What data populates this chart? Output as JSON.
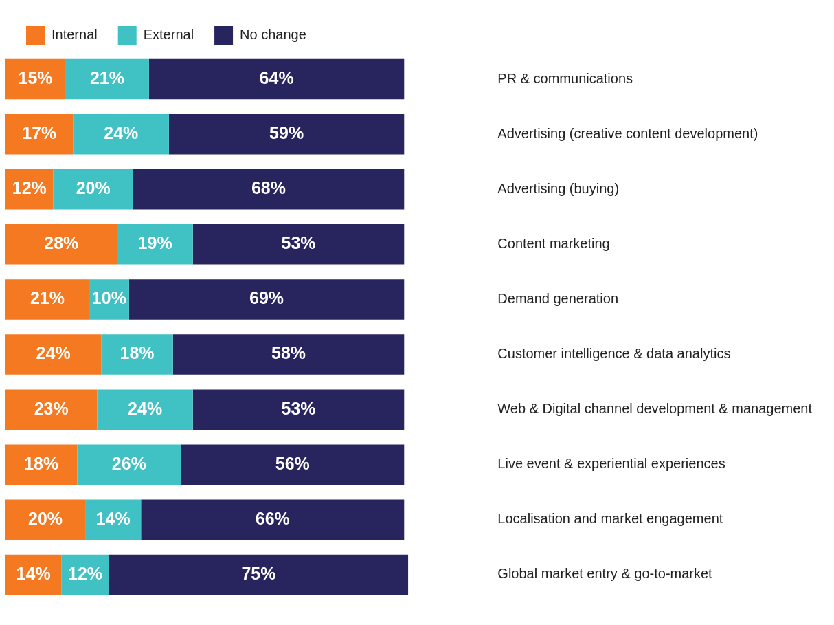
{
  "chart_data": {
    "type": "bar",
    "orientation": "horizontal",
    "stacked": true,
    "legend": "top left",
    "grid": false,
    "tick_labels": "y",
    "categories": [
      "PR & communications",
      "Advertising (creative content development)",
      "Advertising (buying)",
      "Content marketing",
      "Demand generation",
      "Customer intelligence & data analytics",
      "Web & Digital channel development & management",
      "Live event & experiential experiences",
      "Localisation and market engagement",
      "Global market entry & go-to-market"
    ],
    "series": [
      {
        "name": "Internal",
        "color": "#f47920",
        "values": [
          15,
          17,
          12,
          28,
          21,
          24,
          23,
          18,
          20,
          14
        ],
        "value_labels": [
          "15%",
          "17%",
          "12%",
          "28%",
          "21%",
          "24%",
          "23%",
          "18%",
          "20%",
          "14%"
        ]
      },
      {
        "name": "External",
        "color": "#40c1c3",
        "values": [
          21,
          24,
          20,
          19,
          10,
          18,
          24,
          26,
          14,
          12
        ],
        "value_labels": [
          "21%",
          "24%",
          "20%",
          "19%",
          "10%",
          "18%",
          "24%",
          "26%",
          "14%",
          "12%"
        ]
      },
      {
        "name": "No change",
        "color": "#27245e",
        "values": [
          64,
          59,
          68,
          53,
          69,
          58,
          53,
          56,
          66,
          75
        ],
        "value_labels": [
          "64%",
          "59%",
          "68%",
          "53%",
          "69%",
          "58%",
          "53%",
          "56%",
          "66%",
          "75%"
        ]
      }
    ]
  }
}
